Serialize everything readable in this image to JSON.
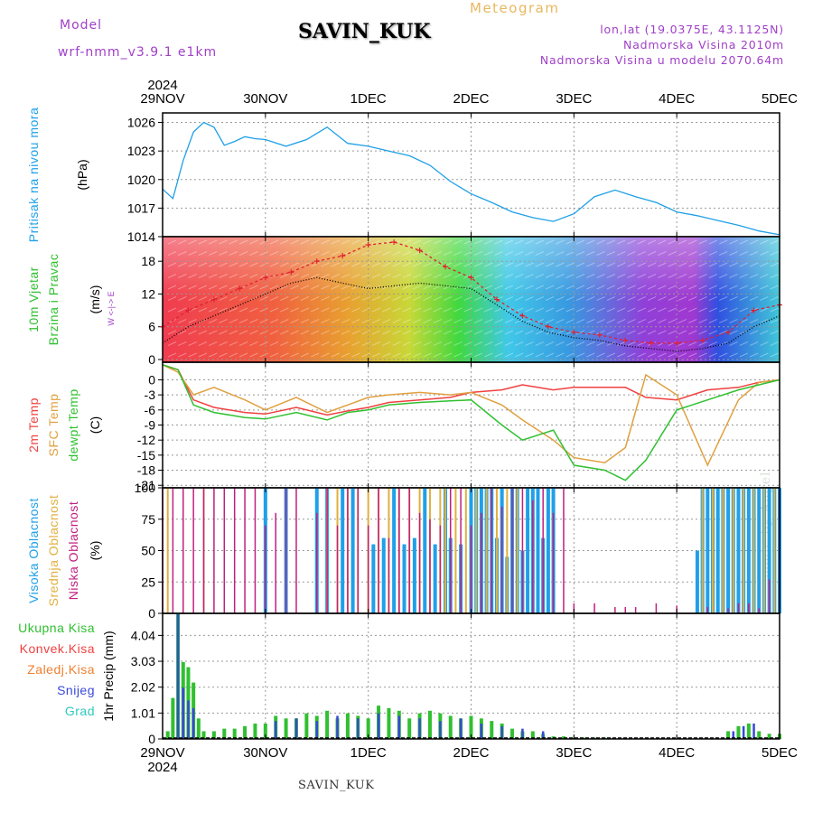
{
  "title": "SAVIN_KUK",
  "model_label": "Model",
  "model_name": "wrf-nmm_v3.9.1 e1km",
  "meteogram": "Meteogram",
  "info": {
    "line1": "lon,lat (19.0375E, 43.1125N)",
    "line2": "Nadmorska Visina 2010m",
    "line3": "Nadmorska Visina u modelu 2070.64m"
  },
  "footer": "SAVIN_KUK",
  "made_by": "made by Angel",
  "year": "2024",
  "x_ticks": [
    "29NOV",
    "30NOV",
    "1DEC",
    "2DEC",
    "3DEC",
    "4DEC",
    "5DEC"
  ],
  "colors": {
    "pressure": "#1ea0e8",
    "temp2m": "#f04040",
    "sfc": "#e0a040",
    "dewpt": "#30c030",
    "high": "#20a0e8",
    "mid": "#e0b040",
    "low": "#c02080",
    "rain": "#30c030",
    "snow": "#3848d8"
  },
  "chart_data": [
    {
      "type": "line",
      "panel": "pressure",
      "label_lines": [
        "Pritisak na nivou mora"
      ],
      "unit": "(hPa)",
      "ylim": [
        1014,
        1027
      ],
      "yticks": [
        "1014",
        "1017",
        "1020",
        "1023",
        "1026"
      ],
      "x": [
        0,
        0.1,
        0.2,
        0.3,
        0.4,
        0.5,
        0.6,
        0.7,
        0.8,
        0.9,
        1.0,
        1.2,
        1.4,
        1.6,
        1.8,
        2.0,
        2.2,
        2.4,
        2.6,
        2.8,
        3.0,
        3.2,
        3.4,
        3.6,
        3.8,
        4.0,
        4.2,
        4.4,
        4.6,
        4.8,
        5.0,
        5.2,
        5.4,
        5.6,
        5.8,
        6.0
      ],
      "series": [
        {
          "values": [
            1019,
            1018,
            1022,
            1025,
            1026,
            1025.5,
            1023.6,
            1024,
            1024.5,
            1024.3,
            1024.2,
            1023.5,
            1024.2,
            1025.5,
            1023.8,
            1023.5,
            1023,
            1022.5,
            1021.5,
            1019.8,
            1018.5,
            1017.6,
            1016.6,
            1016,
            1015.6,
            1016.4,
            1018.2,
            1018.9,
            1018.2,
            1017.6,
            1016.6,
            1016.2,
            1015.7,
            1015.2,
            1014.6,
            1014.2
          ]
        }
      ]
    },
    {
      "type": "line",
      "panel": "wind",
      "label_lines": [
        "10m Vjetar",
        "Brzina i Pravac"
      ],
      "unit": "(m/s)",
      "compass": "W <-|-> E",
      "ylim": [
        -0.5,
        22.5
      ],
      "yticks": [
        "0",
        "6",
        "12",
        "18"
      ],
      "x": [
        0,
        0.25,
        0.5,
        0.75,
        1.0,
        1.25,
        1.5,
        1.75,
        2.0,
        2.25,
        2.5,
        2.75,
        3.0,
        3.25,
        3.5,
        3.75,
        4.0,
        4.25,
        4.5,
        4.75,
        5.0,
        5.25,
        5.5,
        5.75,
        6.0
      ],
      "series": [
        {
          "values": [
            3,
            6,
            8,
            10,
            12,
            14,
            15,
            14,
            13,
            13.5,
            14,
            13.5,
            13,
            10,
            7,
            5,
            4,
            3.5,
            2.5,
            2,
            1.5,
            2,
            3,
            6,
            8
          ]
        },
        {
          "values": [
            6,
            9,
            11,
            13,
            15,
            16,
            18,
            19,
            21,
            21.5,
            20,
            17,
            15,
            11,
            8,
            6,
            5,
            4.5,
            3.5,
            3,
            3,
            3.5,
            5,
            9,
            10
          ]
        }
      ]
    },
    {
      "type": "line",
      "panel": "temperature",
      "label_lines": [
        "2m Temp",
        "SFC Temp",
        "dewpt Temp"
      ],
      "unit": "(C)",
      "ylim": [
        -21.5,
        3.5
      ],
      "yticks": [
        "0",
        "-3",
        "-6",
        "-9",
        "-12",
        "-15",
        "-18",
        "-21"
      ],
      "x": [
        0,
        0.15,
        0.3,
        0.5,
        0.8,
        1.0,
        1.3,
        1.6,
        1.8,
        2.0,
        2.2,
        2.5,
        2.8,
        3.0,
        3.3,
        3.5,
        3.8,
        4.0,
        4.3,
        4.5,
        4.7,
        5.0,
        5.3,
        5.6,
        5.8,
        6.0
      ],
      "series": [
        {
          "name": "2m Temp",
          "values": [
            3,
            2,
            -4,
            -5.5,
            -6.5,
            -6.8,
            -5.5,
            -7,
            -6.2,
            -5.5,
            -4.5,
            -4,
            -3.5,
            -2.5,
            -2,
            -1,
            -2,
            -1.5,
            -1.5,
            -1.5,
            -3.5,
            -4,
            -2,
            -1.5,
            -0.5,
            0
          ]
        },
        {
          "name": "SFC Temp",
          "values": [
            3,
            1.5,
            -3,
            -1.5,
            -4,
            -6,
            -3.5,
            -6.5,
            -5,
            -3.5,
            -3,
            -2.5,
            -3,
            -2.5,
            -5,
            -8,
            -12,
            -15.5,
            -16.5,
            -13.5,
            1,
            -3,
            -17,
            -4,
            -0.5,
            0
          ]
        },
        {
          "name": "dewpt Temp",
          "values": [
            3,
            2,
            -5,
            -6.5,
            -7.5,
            -7.8,
            -6.5,
            -8,
            -6.5,
            -6,
            -5,
            -4.5,
            -4.2,
            -4,
            -9,
            -12,
            -10,
            -17,
            -18,
            -20,
            -16,
            -6,
            -4,
            -2,
            -1,
            0
          ]
        }
      ]
    },
    {
      "type": "bar",
      "panel": "clouds",
      "label_lines": [
        "Visoka Oblacnost",
        "Srednja Oblacnost",
        "Niska Oblacnost"
      ],
      "unit": "(%)",
      "ylim": [
        0,
        100
      ],
      "yticks": [
        "0",
        "25",
        "50",
        "75",
        "100"
      ],
      "series": [
        {
          "name": "Visoka Oblacnost",
          "x": [
            1.0,
            1.2,
            1.5,
            1.6,
            1.75,
            1.85,
            2.05,
            2.15,
            2.25,
            2.35,
            2.45,
            2.55,
            2.65,
            2.75,
            2.8,
            2.9,
            3.0,
            3.05,
            3.1,
            3.15,
            3.2,
            3.25,
            3.3,
            3.35,
            3.4,
            3.45,
            3.5,
            3.55,
            3.6,
            3.65,
            3.7,
            3.75,
            3.8,
            5.2,
            5.25,
            5.3,
            5.35,
            5.4,
            5.45,
            5.5,
            5.55,
            5.6,
            5.65,
            5.7,
            5.75,
            5.8,
            5.85,
            5.9,
            5.95,
            6.0
          ],
          "values": [
            100,
            100,
            100,
            100,
            100,
            100,
            55,
            60,
            100,
            55,
            60,
            100,
            55,
            100,
            60,
            55,
            100,
            100,
            100,
            100,
            100,
            60,
            100,
            45,
            100,
            100,
            50,
            100,
            100,
            100,
            60,
            100,
            100,
            50,
            100,
            100,
            100,
            100,
            100,
            100,
            100,
            100,
            100,
            100,
            100,
            100,
            100,
            100,
            100,
            100
          ]
        },
        {
          "name": "Srednja Oblacnost",
          "x": [
            0.05,
            0.4,
            1.6,
            1.7,
            1.8,
            1.9,
            2.0,
            2.1,
            2.2,
            2.3,
            2.4,
            2.5,
            2.6,
            2.7,
            2.75,
            2.85,
            2.95,
            3.05,
            3.15,
            3.25,
            3.35,
            3.45,
            5.25,
            5.35,
            5.45,
            5.55,
            5.65,
            5.75,
            5.85,
            5.95
          ],
          "values": [
            100,
            100,
            100,
            100,
            100,
            100,
            100,
            100,
            100,
            100,
            100,
            100,
            100,
            100,
            100,
            100,
            100,
            100,
            100,
            100,
            100,
            100,
            100,
            100,
            100,
            100,
            100,
            100,
            100,
            100
          ]
        },
        {
          "name": "Niska Oblacnost",
          "x": [
            0.0,
            0.1,
            0.2,
            0.3,
            0.4,
            0.5,
            0.6,
            0.7,
            0.8,
            0.9,
            1.0,
            1.1,
            1.2,
            1.3,
            1.5,
            1.6,
            1.7,
            1.8,
            1.9,
            2.0,
            2.1,
            2.2,
            2.3,
            2.4,
            2.5,
            2.6,
            2.7,
            2.8,
            2.9,
            3.0,
            3.1,
            3.2,
            3.3,
            3.4,
            3.5,
            3.6,
            3.7,
            3.8,
            3.9,
            4.0,
            4.2,
            4.4,
            4.5,
            4.6,
            4.8,
            5.0,
            5.3,
            5.5,
            5.6,
            5.7,
            5.8,
            5.9,
            6.0
          ],
          "values": [
            100,
            100,
            100,
            100,
            100,
            100,
            100,
            100,
            100,
            100,
            70,
            80,
            100,
            100,
            80,
            100,
            70,
            100,
            100,
            70,
            100,
            60,
            100,
            100,
            80,
            75,
            70,
            100,
            100,
            70,
            80,
            100,
            85,
            100,
            100,
            90,
            100,
            80,
            100,
            8,
            8,
            5,
            5,
            5,
            8,
            6,
            5,
            4,
            8,
            8,
            4,
            27,
            100
          ]
        }
      ]
    },
    {
      "type": "bar",
      "panel": "precipitation",
      "label_lines": [
        "Ukupna Kisa",
        "Konvek.Kisa",
        "Zaledj.Kisa",
        "Snijeg",
        "Grad"
      ],
      "unit": "1hr Precip (mm)",
      "ylim": [
        0,
        4.9
      ],
      "yticks": [
        "0",
        "1.01",
        "2.02",
        "3.03",
        "4.04"
      ],
      "series": [
        {
          "name": "Ukupna Kisa",
          "x": [
            0.05,
            0.1,
            0.15,
            0.2,
            0.25,
            0.3,
            0.35,
            0.4,
            0.5,
            0.6,
            0.7,
            0.8,
            0.9,
            1.0,
            1.1,
            1.2,
            1.3,
            1.4,
            1.5,
            1.6,
            1.7,
            1.8,
            1.9,
            2.0,
            2.1,
            2.2,
            2.3,
            2.4,
            2.5,
            2.6,
            2.7,
            2.8,
            2.9,
            3.0,
            3.1,
            3.2,
            3.3,
            3.4,
            3.5,
            3.6,
            3.7,
            3.8,
            3.9,
            4.0,
            4.1,
            4.2,
            4.3,
            5.5,
            5.6,
            5.7,
            5.8,
            5.9,
            6.0
          ],
          "values": [
            0.3,
            1.6,
            4.9,
            3.0,
            2.8,
            2.2,
            0.8,
            0.3,
            0.3,
            0.4,
            0.4,
            0.5,
            0.6,
            0.6,
            0.9,
            0.8,
            0.8,
            1.0,
            0.9,
            1.1,
            0.8,
            1.0,
            0.9,
            0.8,
            1.3,
            1.2,
            1.1,
            0.8,
            1.0,
            1.1,
            1.0,
            0.9,
            0.8,
            0.9,
            0.8,
            0.7,
            0.6,
            0.4,
            0.3,
            0.3,
            0.2,
            0.1,
            0.1,
            0.05,
            0.05,
            0.05,
            0.05,
            0.3,
            0.5,
            0.6,
            0.3,
            0.2,
            0.2
          ]
        },
        {
          "name": "Snijeg",
          "x": [
            0.15,
            0.2,
            0.25,
            0.3,
            1.1,
            1.3,
            1.5,
            1.7,
            1.9,
            2.1,
            2.3,
            2.5,
            2.7,
            2.9,
            3.1,
            3.3,
            3.5,
            3.7,
            5.55,
            5.65,
            5.75
          ],
          "values": [
            4.9,
            2.0,
            1.5,
            1.2,
            0.7,
            0.8,
            0.7,
            0.9,
            0.8,
            1.0,
            0.9,
            0.8,
            0.7,
            0.8,
            0.6,
            0.5,
            0.4,
            0.3,
            0.3,
            0.5,
            0.6
          ]
        }
      ]
    }
  ]
}
